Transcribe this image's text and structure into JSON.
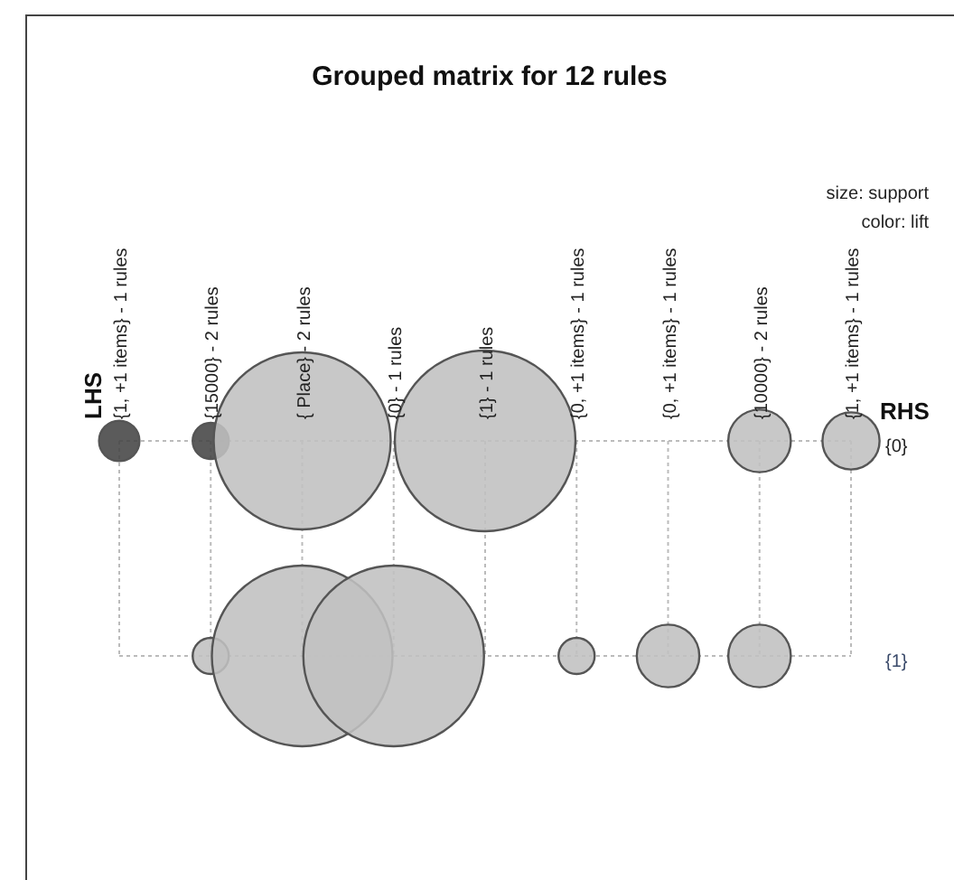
{
  "chart_data": {
    "type": "bubble",
    "title": "Grouped matrix for 12 rules",
    "ylabel": "RHS",
    "categories": [
      "{1, +1 items} - 1 rules",
      "{15000} - 2 rules",
      "{ Place} - 2 rules",
      "{0} - 1 rules",
      "{1} - 1 rules",
      "{0, +1 items} - 1 rules",
      "{0, +1 items} - 1 rules",
      "{10000} - 2 rules",
      "{1, +1 items} - 1 rules"
    ],
    "ylim": [
      1,
      0
    ],
    "yticks": [
      {
        "value": 0,
        "label": "{0}"
      },
      {
        "value": 1,
        "label": "{1}"
      }
    ],
    "series": [
      {
        "values": [
          0,
          0,
          0,
          null,
          0,
          null,
          null,
          0,
          0
        ],
        "sizes": [
          0.05,
          0.04,
          0.96,
          null,
          1,
          null,
          null,
          0.12,
          0.1
        ],
        "colors": [
          "#444444",
          "#444444",
          "#c0c0c0",
          null,
          "#c0c0c0",
          null,
          null,
          "#c0c0c0",
          "#c0c0c0"
        ]
      },
      {
        "values": [
          null,
          1,
          1,
          1,
          null,
          1,
          1,
          1,
          null
        ],
        "sizes": [
          null,
          0.04,
          1,
          1,
          null,
          0.04,
          0.12,
          0.12,
          null
        ],
        "colors": [
          null,
          "#c0c0c0",
          "#c0c0c0",
          "#c0c0c0",
          null,
          "#c0c0c0",
          "#c0c0c0",
          "#c0c0c0",
          null
        ]
      }
    ],
    "grid": true,
    "annotations": [
      "LHS",
      "size: support",
      "color: lift"
    ]
  }
}
